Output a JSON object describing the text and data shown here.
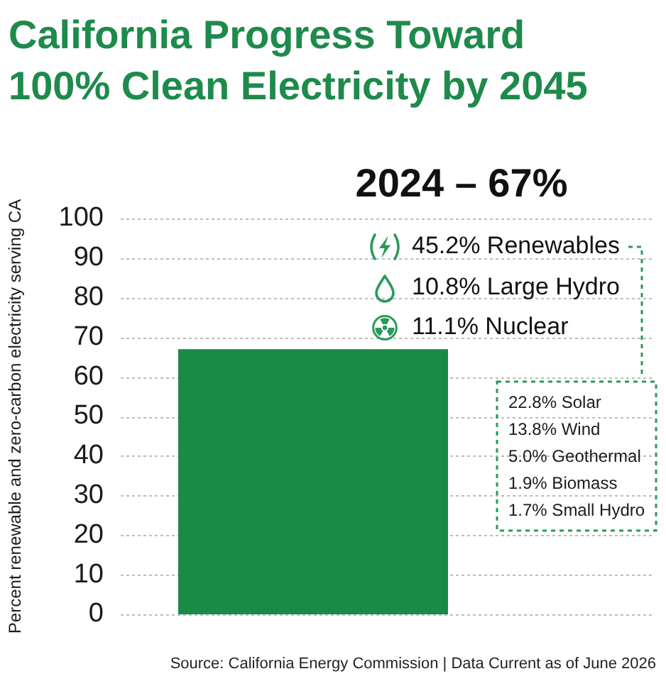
{
  "chart_data": {
    "type": "bar",
    "title": "California Progress Toward 100% Clean Electricity by 2045",
    "ylabel": "Percent renewable and zero-carbon electricity serving CA",
    "categories": [
      null
    ],
    "values": [
      67
    ],
    "color": "#1a8a47",
    "ylim": [
      0,
      100
    ],
    "yticks": [
      0,
      10,
      20,
      30,
      40,
      50,
      60,
      70,
      80,
      90,
      100
    ],
    "grid": "y",
    "annotations": [
      "2024 – 67%",
      "45.2% Renewables",
      "10.8% Large Hydro",
      "11.1% Nuclear",
      "22.8% Solar",
      "13.8% Wind",
      "5.0% Geothermal",
      "1.9% Biomass",
      "1.7% Small Hydro",
      "Source: California Energy Commission | Data Current as of June 2026"
    ]
  }
}
